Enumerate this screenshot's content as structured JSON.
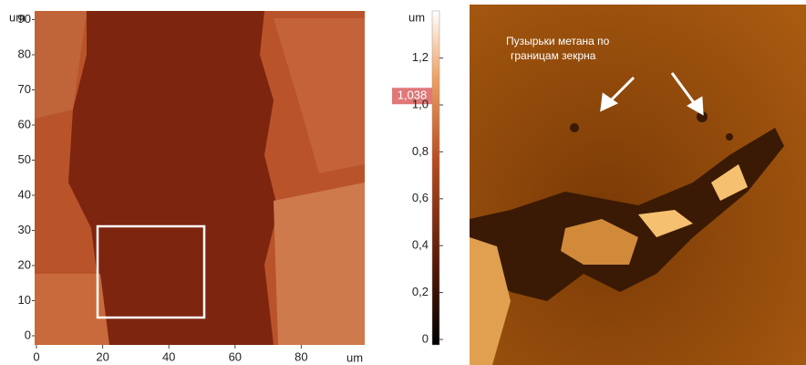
{
  "left_image": {
    "y_unit": "um",
    "x_unit": "um",
    "yticks": [
      0,
      10,
      20,
      30,
      40,
      50,
      60,
      70,
      80,
      90
    ],
    "xticks": [
      0,
      20,
      40,
      60,
      80
    ]
  },
  "colorbar": {
    "unit": "um",
    "ticks": [
      {
        "value": 0,
        "label": "0"
      },
      {
        "value": 0.2,
        "label": "0,2"
      },
      {
        "value": 0.4,
        "label": "0,4"
      },
      {
        "value": 0.6,
        "label": "0,6"
      },
      {
        "value": 0.8,
        "label": "0,8"
      },
      {
        "value": 1.0,
        "label": "1,0"
      },
      {
        "value": 1.2,
        "label": "1,2"
      }
    ],
    "marker": {
      "value": 1.038,
      "label": "1,038"
    }
  },
  "right_image": {
    "annotation": [
      "Пузырьки метана по",
      "границам зекрна"
    ]
  }
}
